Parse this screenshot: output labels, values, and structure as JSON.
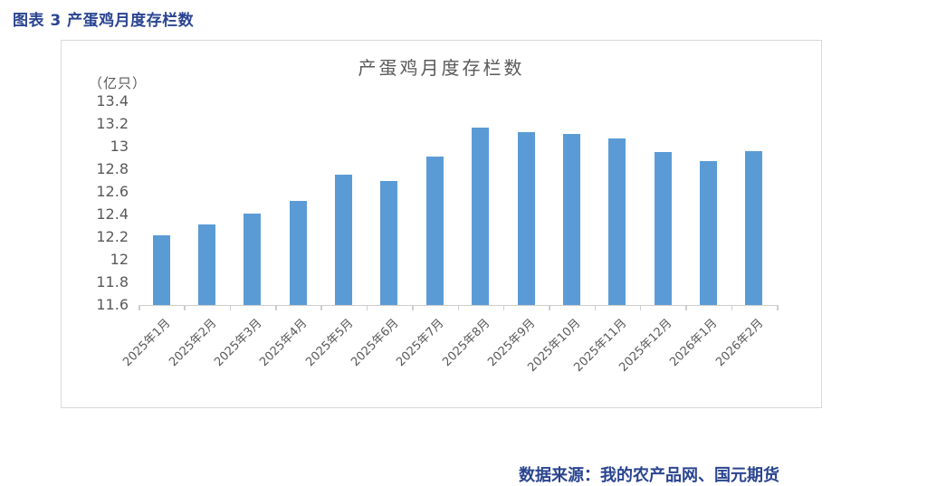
{
  "page": {
    "header_title": "图表 3 产蛋鸡月度存栏数",
    "source_note": "数据来源：我的农产品网、国元期货"
  },
  "colors": {
    "bar": "#5B9BD5",
    "caption_text": "#2A4490",
    "axis_text": "#595959",
    "box_border": "#D9D9D9",
    "axis_line": "#CFCDCD"
  },
  "chart_data": {
    "type": "bar",
    "title": "产蛋鸡月度存栏数",
    "unit_label": "（亿只）",
    "categories": [
      "2025年1月",
      "2025年2月",
      "2025年3月",
      "2025年4月",
      "2025年5月",
      "2025年6月",
      "2025年7月",
      "2025年8月",
      "2025年9月",
      "2025年10月",
      "2025年11月",
      "2025年12月",
      "2026年1月",
      "2026年2月"
    ],
    "values": [
      12.22,
      12.31,
      12.41,
      12.52,
      12.75,
      12.7,
      12.91,
      13.17,
      13.13,
      13.11,
      13.07,
      12.95,
      12.87,
      12.96
    ],
    "ylim": [
      11.6,
      13.4
    ],
    "ytick_step": 0.2,
    "yticks": [
      "13.4",
      "13.2",
      "13",
      "12.8",
      "12.6",
      "12.4",
      "12.2",
      "12",
      "11.8",
      "11.6"
    ],
    "grid": false,
    "legend_position": "none",
    "xlabel": "",
    "ylabel": "亿只"
  }
}
